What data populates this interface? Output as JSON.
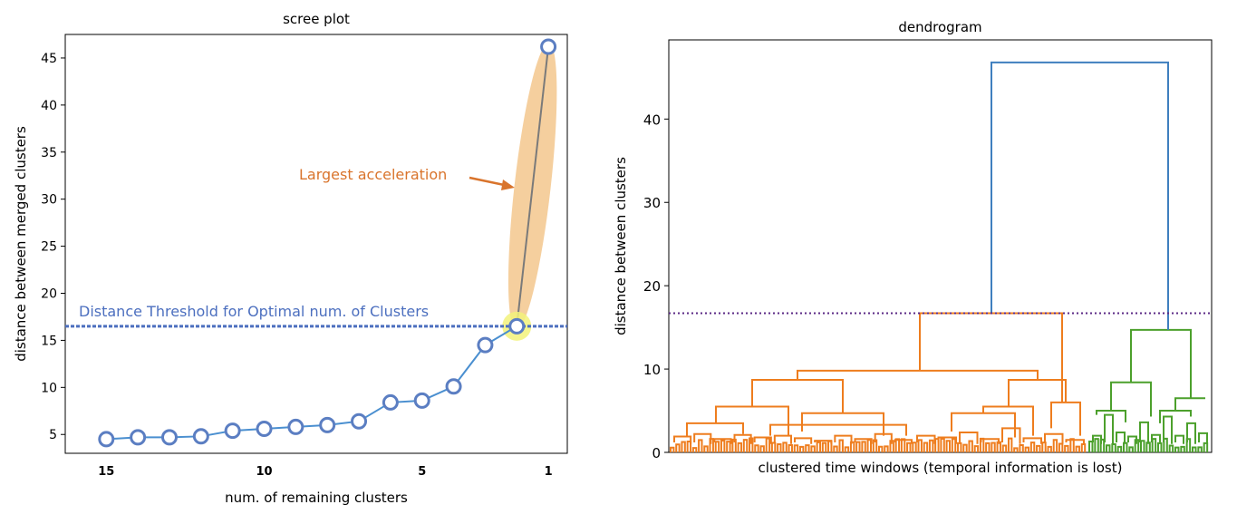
{
  "chart_data": [
    {
      "type": "line",
      "title": "scree plot",
      "xlabel": "num. of remaining clusters",
      "ylabel": "distance between merged clusters",
      "x_tick_labels": [
        "15",
        "10",
        "5",
        "1"
      ],
      "x_tick_positions": [
        15,
        10,
        5,
        1
      ],
      "y_ticks": [
        5,
        10,
        15,
        20,
        25,
        30,
        35,
        40,
        45
      ],
      "xlim": [
        16.3,
        0.4
      ],
      "ylim": [
        3.0,
        47.5
      ],
      "x": [
        15,
        14,
        13,
        12,
        11,
        10,
        9,
        8,
        7,
        6,
        5,
        4,
        3,
        2,
        1
      ],
      "values": [
        4.5,
        4.7,
        4.7,
        4.8,
        5.4,
        5.6,
        5.8,
        6.0,
        6.4,
        8.4,
        8.6,
        10.1,
        14.5,
        16.5,
        46.2
      ],
      "series_color": "#5b7ec2",
      "line_color": "#4a8fd0",
      "threshold": {
        "value": 16.5,
        "label": "Distance Threshold for Optimal num. of Clusters",
        "color": "#4c6fbf"
      },
      "highlight_point": {
        "x": 2,
        "y": 16.5,
        "color": "#f2f27a"
      },
      "largest_acceleration": {
        "from": [
          2,
          16.5
        ],
        "to": [
          1,
          46.2
        ],
        "band_color": "#f5cf9e",
        "line_color": "#7a7a7a"
      },
      "annotation": {
        "text": "Largest acceleration",
        "color": "#d9742c"
      }
    },
    {
      "type": "dendrogram",
      "title": "dendrogram",
      "xlabel": "clustered time windows (temporal information is lost)",
      "ylabel": "distance between clusters",
      "y_ticks": [
        0,
        10,
        20,
        30,
        40
      ],
      "ylim": [
        0,
        49.5
      ],
      "cut_height": 16.7,
      "cut_color": "#5b2a86",
      "root_height": 46.8,
      "colors": {
        "root": "#3f7fbf",
        "orange": "#ee7d1e",
        "green": "#4ca02c"
      },
      "orange_merges": [
        16.7,
        9.8,
        8.7,
        5.5,
        6.0
      ],
      "green_merges": [
        14.7,
        8.4,
        6.5,
        5.0
      ]
    }
  ]
}
